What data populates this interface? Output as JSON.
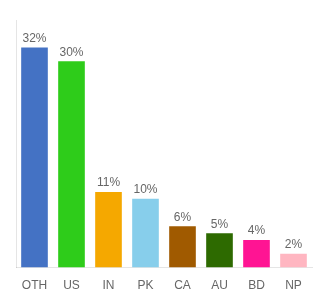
{
  "chart_data": {
    "type": "bar",
    "categories": [
      "OTH",
      "US",
      "IN",
      "PK",
      "CA",
      "AU",
      "BD",
      "NP"
    ],
    "values": [
      32,
      30,
      11,
      10,
      6,
      5,
      4,
      2
    ],
    "value_labels": [
      "32%",
      "30%",
      "11%",
      "10%",
      "6%",
      "5%",
      "4%",
      "2%"
    ],
    "colors": [
      "#4472c4",
      "#2ecc1a",
      "#f5a800",
      "#87ceeb",
      "#a05a00",
      "#2d6a00",
      "#ff1493",
      "#ffb6c1"
    ],
    "ylim": [
      0,
      36
    ],
    "grid": false,
    "data_labels": true,
    "tick_labels": "x"
  }
}
